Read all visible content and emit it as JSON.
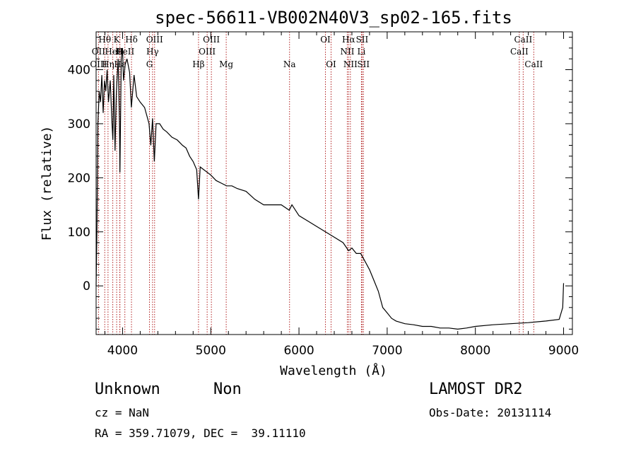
{
  "chart_data": {
    "type": "line",
    "title": "spec-56611-VB002N40V3_sp02-165.fits",
    "xlabel": "Wavelength (Å)",
    "ylabel": "Flux (relative)",
    "xlim": [
      3700,
      9100
    ],
    "ylim": [
      -90,
      470
    ],
    "xticks": [
      4000,
      5000,
      6000,
      7000,
      8000,
      9000
    ],
    "yticks": [
      0,
      100,
      200,
      300,
      400
    ],
    "minor_x_step": 200,
    "minor_y_step": 20,
    "grid": false,
    "line_color": "#000000",
    "marker_color": "#b22222",
    "series": [
      {
        "x": [
          3700,
          3710,
          3720,
          3735,
          3750,
          3765,
          3780,
          3795,
          3810,
          3825,
          3840,
          3860,
          3880,
          3890,
          3900,
          3915,
          3930,
          3950,
          3965,
          3970,
          3985,
          4000,
          4010,
          4030,
          4050,
          4080,
          4100,
          4130,
          4160,
          4200,
          4250,
          4300,
          4320,
          4340,
          4360,
          4380,
          4420,
          4460,
          4500,
          4560,
          4620,
          4680,
          4720,
          4760,
          4800,
          4840,
          4861,
          4880,
          4920,
          4960,
          5000,
          5060,
          5120,
          5180,
          5240,
          5300,
          5400,
          5500,
          5600,
          5700,
          5800,
          5890,
          5920,
          6000,
          6100,
          6200,
          6300,
          6400,
          6500,
          6563,
          6600,
          6650,
          6700,
          6750,
          6800,
          6850,
          6900,
          6950,
          7000,
          7050,
          7100,
          7200,
          7300,
          7400,
          7500,
          7600,
          7700,
          7800,
          7900,
          8000,
          8200,
          8400,
          8600,
          8800,
          8950,
          8990,
          9000
        ],
        "y": [
          0,
          110,
          300,
          360,
          340,
          390,
          320,
          380,
          360,
          400,
          340,
          380,
          300,
          270,
          390,
          250,
          360,
          420,
          300,
          210,
          420,
          440,
          380,
          410,
          420,
          395,
          330,
          390,
          350,
          340,
          330,
          300,
          260,
          310,
          230,
          300,
          300,
          290,
          285,
          275,
          270,
          260,
          255,
          240,
          230,
          215,
          160,
          220,
          215,
          210,
          205,
          195,
          190,
          185,
          185,
          180,
          175,
          160,
          150,
          150,
          150,
          140,
          150,
          130,
          120,
          110,
          100,
          90,
          80,
          65,
          70,
          60,
          60,
          45,
          30,
          10,
          -10,
          -40,
          -50,
          -60,
          -65,
          -70,
          -72,
          -75,
          -75,
          -78,
          -78,
          -80,
          -78,
          -75,
          -72,
          -70,
          -68,
          -65,
          -62,
          -40,
          5
        ]
      }
    ],
    "lines": [
      {
        "label": "Hθ",
        "wavelength": 3798,
        "row": 0
      },
      {
        "label": "K",
        "wavelength": 3933,
        "row": 0
      },
      {
        "label": "Hδ",
        "wavelength": 4101,
        "row": 0
      },
      {
        "label": "OIII",
        "wavelength": 4363,
        "row": 0
      },
      {
        "label": "OIII",
        "wavelength": 5007,
        "row": 0
      },
      {
        "label": "OI",
        "wavelength": 6300,
        "row": 0
      },
      {
        "label": "Hα",
        "wavelength": 6563,
        "row": 0
      },
      {
        "label": "SII",
        "wavelength": 6716,
        "row": 0
      },
      {
        "label": "CaII",
        "wavelength": 8542,
        "row": 0
      },
      {
        "label": "OII",
        "wavelength": 3727,
        "row": 1
      },
      {
        "label": "HeI",
        "wavelength": 3889,
        "row": 1
      },
      {
        "label": "H",
        "wavelength": 3968,
        "row": 1
      },
      {
        "label": "HeII",
        "wavelength": 4026,
        "row": 1
      },
      {
        "label": "Hγ",
        "wavelength": 4340,
        "row": 1
      },
      {
        "label": "OIII",
        "wavelength": 4959,
        "row": 1
      },
      {
        "label": "NII",
        "wavelength": 6548,
        "row": 1
      },
      {
        "label": "Li",
        "wavelength": 6708,
        "row": 1
      },
      {
        "label": "CaII",
        "wavelength": 8498,
        "row": 1
      },
      {
        "label": "OIII",
        "wavelength": 3727,
        "row": 2
      },
      {
        "label": "Hη",
        "wavelength": 3835,
        "row": 2
      },
      {
        "label": "Hε",
        "wavelength": 3970,
        "row": 2
      },
      {
        "label": "G",
        "wavelength": 4305,
        "row": 2
      },
      {
        "label": "Hβ",
        "wavelength": 4861,
        "row": 2
      },
      {
        "label": "Mg",
        "wavelength": 5175,
        "row": 2
      },
      {
        "label": "Na",
        "wavelength": 5893,
        "row": 2
      },
      {
        "label": "OI",
        "wavelength": 6364,
        "row": 2
      },
      {
        "label": "NII",
        "wavelength": 6583,
        "row": 2
      },
      {
        "label": "SII",
        "wavelength": 6731,
        "row": 2
      },
      {
        "label": "CaII",
        "wavelength": 8662,
        "row": 2
      }
    ]
  },
  "info": {
    "class_label": "Unknown",
    "subclass_label": "Non",
    "survey_label": "LAMOST DR2",
    "cz_text": "cz = NaN",
    "obs_date_text": "Obs-Date: 20131114",
    "coords_text": "RA = 359.71079, DEC =  39.11110"
  }
}
